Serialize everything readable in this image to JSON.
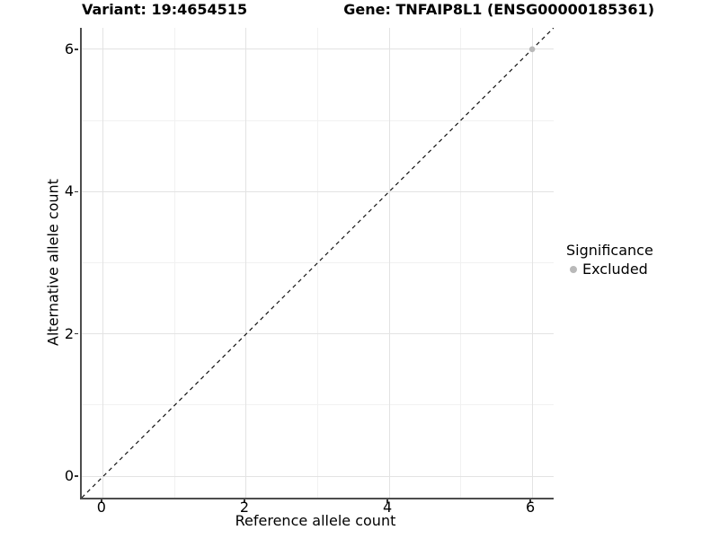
{
  "header": {
    "variant_title": "Variant: 19:4654515",
    "gene_title": "Gene: TNFAIP8L1 (ENSG00000185361)"
  },
  "chart_data": {
    "type": "scatter",
    "title_left": "Variant: 19:4654515",
    "title_right": "Gene: TNFAIP8L1 (ENSG00000185361)",
    "xlabel": "Reference allele count",
    "ylabel": "Alternative allele count",
    "xlim": [
      -0.3,
      6.3
    ],
    "ylim": [
      -0.3,
      6.3
    ],
    "x_major_ticks": [
      0,
      2,
      4,
      6
    ],
    "y_major_ticks": [
      0,
      2,
      4,
      6
    ],
    "x_minor_ticks": [
      1,
      3,
      5
    ],
    "y_minor_ticks": [
      1,
      3,
      5
    ],
    "grid": "major+minor",
    "points": [
      {
        "x": 6,
        "y": 6,
        "series": "Excluded"
      }
    ],
    "identity_line": {
      "style": "dashed",
      "from": [
        -0.3,
        -0.3
      ],
      "to": [
        6.3,
        6.3
      ]
    },
    "legend": {
      "title": "Significance",
      "position": "right",
      "entries": [
        {
          "label": "Excluded",
          "marker": "circle",
          "color": "#b9b9b9"
        }
      ]
    }
  },
  "colors": {
    "background": "#ffffff",
    "grid_major": "#e3e3e3",
    "grid_minor": "#f1f1f1",
    "axis_line": "#4d4d4d",
    "tick": "#333333",
    "text": "#000000",
    "point_fill": "#b9b9b9",
    "dashed_line": "#141414"
  }
}
